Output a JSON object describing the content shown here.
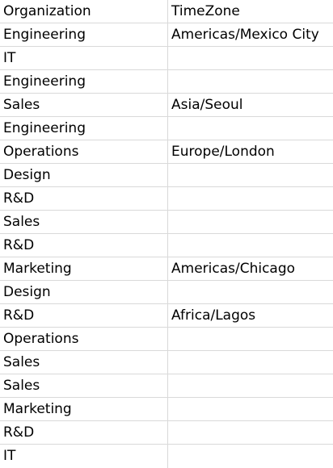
{
  "table": {
    "headers": [
      "Organization",
      "TimeZone"
    ],
    "rows": [
      [
        "Engineering",
        "Americas/Mexico City"
      ],
      [
        "IT",
        ""
      ],
      [
        "Engineering",
        ""
      ],
      [
        "Sales",
        "Asia/Seoul"
      ],
      [
        "Engineering",
        ""
      ],
      [
        "Operations",
        "Europe/London"
      ],
      [
        "Design",
        ""
      ],
      [
        "R&D",
        ""
      ],
      [
        "Sales",
        ""
      ],
      [
        "R&D",
        ""
      ],
      [
        "Marketing",
        "Americas/Chicago"
      ],
      [
        "Design",
        ""
      ],
      [
        "R&D",
        "Africa/Lagos"
      ],
      [
        "Operations",
        ""
      ],
      [
        "Sales",
        ""
      ],
      [
        "Sales",
        ""
      ],
      [
        "Marketing",
        ""
      ],
      [
        "R&D",
        ""
      ],
      [
        "IT",
        ""
      ]
    ]
  }
}
